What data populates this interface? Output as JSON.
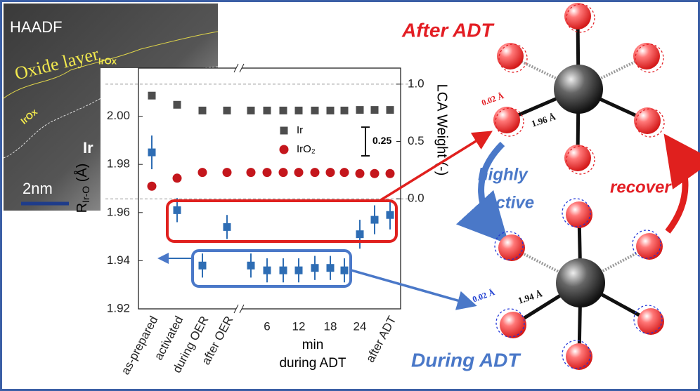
{
  "chart_data": {
    "type": "scatter",
    "categories": [
      "as-prepared",
      "activated",
      "during OER",
      "after OER",
      null,
      "6",
      null,
      "12",
      null,
      "18",
      null,
      "24",
      null,
      "after ADT"
    ],
    "x_label": [
      "min",
      "during ADT"
    ],
    "y_label": {
      "main": "R",
      "sub": "Ir-O",
      "unit": " (Å)"
    },
    "y2_label": "LCA Weight (-)",
    "ylim": [
      1.92,
      2.02
    ],
    "yticks": [
      1.92,
      1.94,
      1.96,
      1.98,
      {
        "value": 2.0,
        "label": "2.00"
      }
    ],
    "y2lim": [
      -0.96,
      1.14
    ],
    "y2ticks": [
      {
        "value": 0,
        "label": "0.0"
      },
      {
        "value": 0.5,
        "label": "0.5"
      },
      {
        "value": 1,
        "label": "1.0"
      }
    ],
    "y2_reference_lines": [
      0,
      1
    ],
    "scale_bar": 0.25,
    "series": [
      {
        "color": "#2e6db4",
        "marker": "square",
        "axis": "y",
        "values": [
          1.985,
          1.961,
          1.938,
          1.954,
          1.938,
          1.936,
          1.936,
          1.936,
          1.937,
          1.937,
          1.936,
          1.951,
          1.957,
          1.959
        ],
        "errors": [
          0.007,
          0.005,
          0.005,
          0.005,
          0.005,
          0.005,
          0.005,
          0.005,
          0.005,
          0.005,
          0.005,
          0.006,
          0.006,
          0.006
        ]
      },
      {
        "name": "Ir",
        "color": "#4d4d4d",
        "marker": "square",
        "axis": "y2",
        "values": [
          0.9,
          0.82,
          0.77,
          0.77,
          0.77,
          0.77,
          0.77,
          0.77,
          0.77,
          0.77,
          0.77,
          0.775,
          0.775,
          0.775
        ]
      },
      {
        "name": "IrO₂",
        "color": "#c4161c",
        "marker": "circle",
        "axis": "y2",
        "values": [
          0.11,
          0.18,
          0.23,
          0.23,
          0.23,
          0.23,
          0.23,
          0.23,
          0.23,
          0.23,
          0.23,
          0.22,
          0.22,
          0.22
        ]
      }
    ]
  },
  "inset": {
    "title": "HAADF",
    "layer": "Oxide layer",
    "oxide_1": "IrOx",
    "oxide_2": "IrOx",
    "metal": "Ir",
    "scale": "2nm"
  },
  "schematic": {
    "after": "After ADT",
    "during": "During ADT",
    "active_1": "highly",
    "active_2": "active",
    "recover": "recover",
    "after_shift": "0.02 Å",
    "after_bond": "1.96 Å",
    "during_shift": "0.02 Å",
    "during_bond": "1.94 Å"
  }
}
